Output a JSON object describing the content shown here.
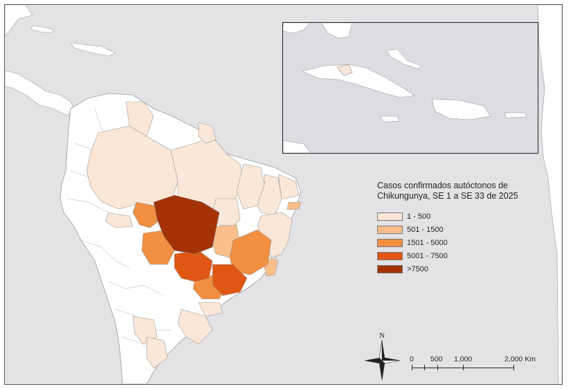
{
  "legend": {
    "title_line1": "Casos confirmados autóctonos de",
    "title_line2": "Chikungunya, SE 1 a SE 33 de 2025",
    "classes": [
      {
        "label": "1 - 500",
        "color": "#fbe7d8"
      },
      {
        "label": "501 - 1500",
        "color": "#f9be8a"
      },
      {
        "label": "1501 - 5000",
        "color": "#f38f40"
      },
      {
        "label": "5001 - 7500",
        "color": "#e05713"
      },
      {
        "label": ">7500",
        "color": "#a33205"
      }
    ]
  },
  "north_arrow": {
    "label": "N"
  },
  "scale_bar": {
    "labels": [
      "0",
      "500",
      "1,000",
      "2,000 Km"
    ]
  },
  "colors": {
    "water": "#e3e3e6",
    "land": "#ffffff",
    "border": "#9a9a9a"
  }
}
